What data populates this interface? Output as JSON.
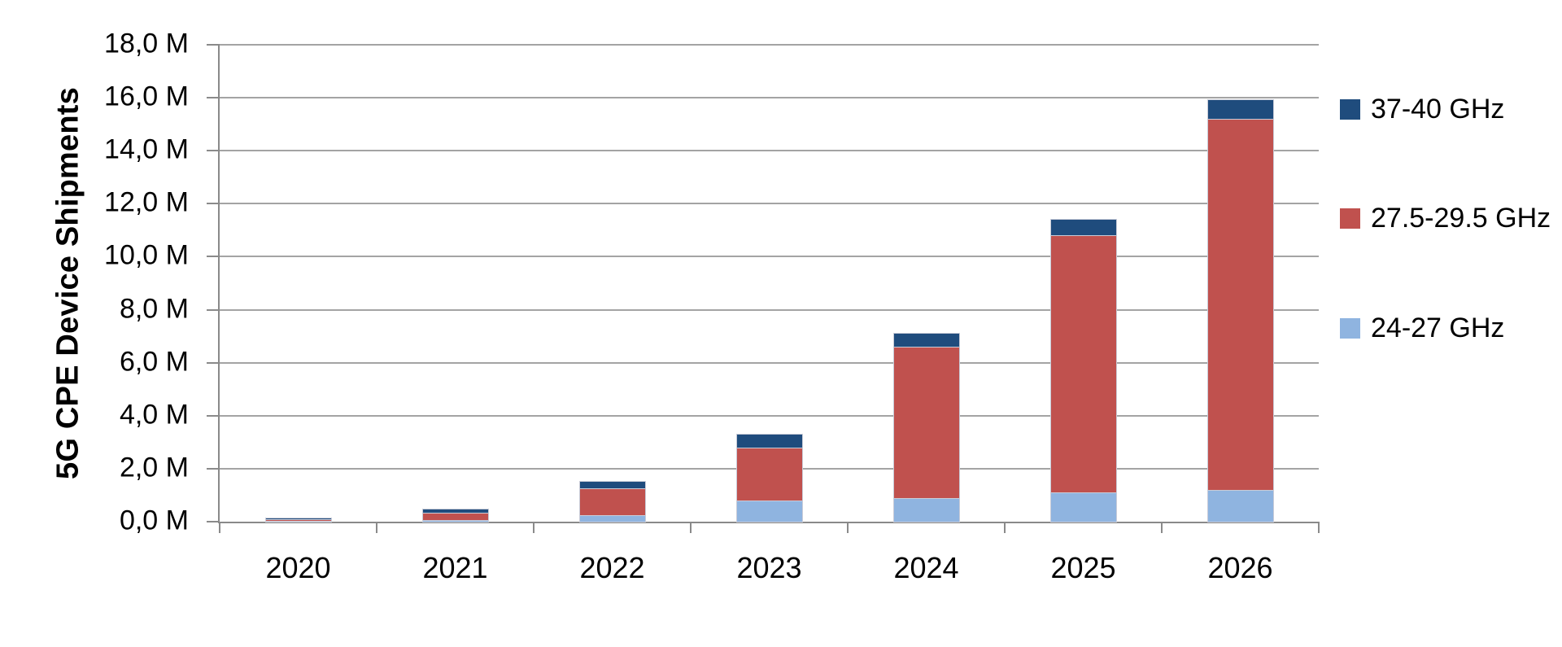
{
  "chart_data": {
    "type": "bar",
    "stacked": true,
    "title": "",
    "ylabel": "5G CPE Device Shipments",
    "xlabel": "",
    "categories": [
      "2020",
      "2021",
      "2022",
      "2023",
      "2024",
      "2025",
      "2026"
    ],
    "series": [
      {
        "name": "24-27 GHz",
        "color": "#8fb4e0",
        "values": [
          0.02,
          0.05,
          0.25,
          0.8,
          0.9,
          1.1,
          1.2
        ]
      },
      {
        "name": "27.5-29.5 GHz",
        "color": "#c0514e",
        "values": [
          0.06,
          0.3,
          1.0,
          2.0,
          5.7,
          9.7,
          14.0
        ]
      },
      {
        "name": "37-40 GHz",
        "color": "#1f4c7d",
        "values": [
          0.03,
          0.1,
          0.25,
          0.5,
          0.5,
          0.6,
          0.7
        ]
      }
    ],
    "ylim": [
      0,
      18
    ],
    "ytick_step": 2,
    "ytick_labels": [
      "0,0 M",
      "2,0 M",
      "4,0 M",
      "6,0 M",
      "8,0 M",
      "10,0 M",
      "12,0 M",
      "14,0 M",
      "16,0 M",
      "18,0 M"
    ],
    "grid": true,
    "legend": {
      "position": "right",
      "order_top_to_bottom": [
        "37-40 GHz",
        "27.5-29.5 GHz",
        "24-27 GHz"
      ]
    },
    "colors": {
      "gridline": "#a4a4a4",
      "axis": "#8a8a8a",
      "bar_border": "#c9ccd8",
      "text": "#000000"
    }
  }
}
